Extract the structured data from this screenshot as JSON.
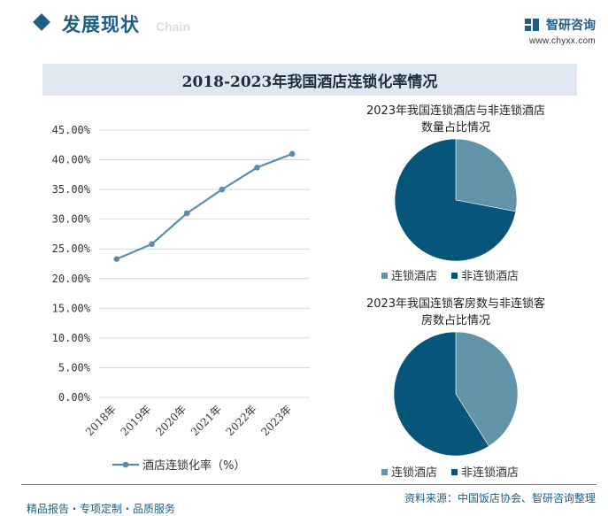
{
  "header": {
    "title": "发展现状",
    "subtitle": "Chain",
    "brand_name": "智研咨询",
    "brand_url": "www.chyxx.com"
  },
  "main_title": "2018-2023年我国酒店连锁化率情况",
  "colors": {
    "brand": "#1d5f84",
    "line": "#5a8ea7",
    "chain_hotel": "#6193a9",
    "non_chain_hotel": "#08557a",
    "title_bar": "#dfe8f0"
  },
  "chart_data": [
    {
      "type": "line",
      "title": "",
      "x": [
        "2018年",
        "2019年",
        "2020年",
        "2021年",
        "2022年",
        "2023年"
      ],
      "series": [
        {
          "name": "酒店连锁化率（%）",
          "values": [
            23.3,
            25.8,
            31.0,
            35.0,
            38.7,
            41.0
          ]
        }
      ],
      "ylim": [
        0,
        45
      ],
      "yticks": [
        "0.00%",
        "5.00%",
        "10.00%",
        "15.00%",
        "20.00%",
        "25.00%",
        "30.00%",
        "35.00%",
        "40.00%",
        "45.00%"
      ],
      "grid": true,
      "legend_position": "bottom"
    },
    {
      "type": "pie",
      "title": "2023年我国连锁酒店与非连锁酒店数量占比情况",
      "title_lines": [
        "2023年我国连锁酒店与非连锁酒店",
        "数量占比情况"
      ],
      "labels": [
        "连锁酒店",
        "非连锁酒店"
      ],
      "values": [
        28,
        72
      ],
      "legend_position": "bottom"
    },
    {
      "type": "pie",
      "title": "2023年我国连锁客房数与非连锁客房数占比情况",
      "title_lines": [
        "2023年我国连锁客房数与非连锁客",
        "房数占比情况"
      ],
      "labels": [
        "连锁酒店",
        "非连锁酒店"
      ],
      "values": [
        41,
        59
      ],
      "legend_position": "bottom"
    }
  ],
  "footer": {
    "left": "精品报告・专项定制・品质服务",
    "right": "资料来源：中国饭店协会、智研咨询整理"
  }
}
